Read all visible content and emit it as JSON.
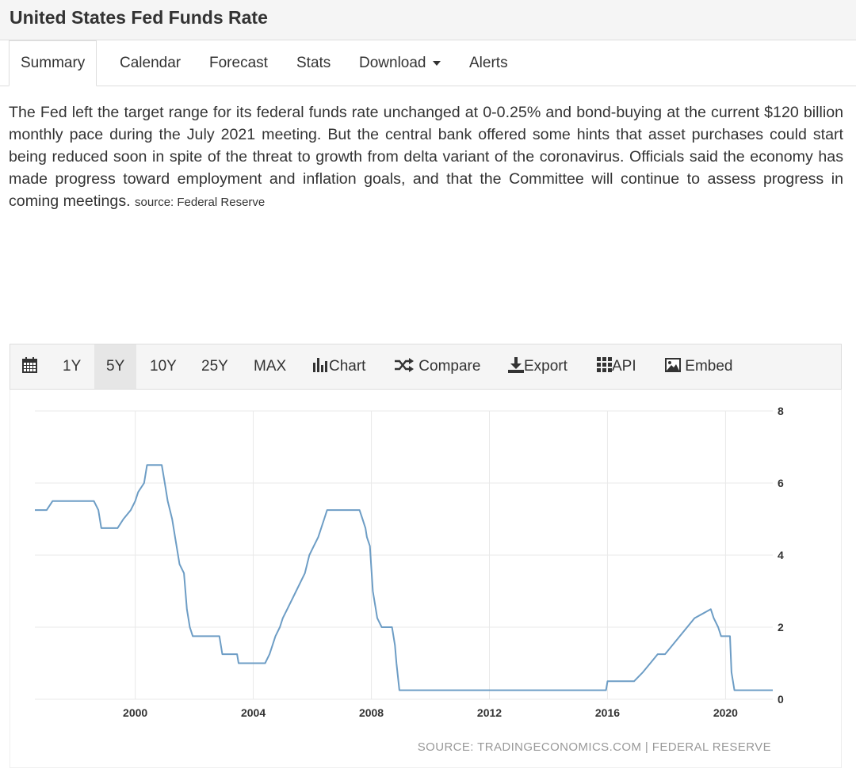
{
  "header": {
    "title": "United States Fed Funds Rate"
  },
  "tabs": [
    {
      "label": "Summary",
      "active": true
    },
    {
      "label": "Calendar"
    },
    {
      "label": "Forecast"
    },
    {
      "label": "Stats"
    },
    {
      "label": "Download",
      "dropdown": true
    },
    {
      "label": "Alerts"
    }
  ],
  "summary": {
    "text": "The Fed left the target range for its federal funds rate unchanged at 0-0.25% and bond-buying at the current $120 billion monthly pace during the July 2021 meeting. But the central bank offered some hints that asset purchases could start being reduced soon in spite of the threat to growth from delta variant of the coronavirus. Officials said the economy has made progress toward employment and inflation goals, and that the Committee will continue to assess progress in coming meetings.",
    "source": "source: Federal Reserve"
  },
  "toolbar": {
    "calendar_icon": "calendar-icon",
    "ranges": [
      "1Y",
      "5Y",
      "10Y",
      "25Y",
      "MAX"
    ],
    "active_range": "5Y",
    "chart_label": "Chart",
    "compare_label": "Compare",
    "export_label": "Export",
    "api_label": "API",
    "embed_label": "Embed"
  },
  "chart_data": {
    "type": "line",
    "series": [
      {
        "color": "#6d9dc5",
        "points": [
          [
            1996.6,
            5.25
          ],
          [
            1997.0,
            5.25
          ],
          [
            1997.2,
            5.5
          ],
          [
            1998.0,
            5.5
          ],
          [
            1998.6,
            5.5
          ],
          [
            1998.75,
            5.25
          ],
          [
            1998.85,
            4.75
          ],
          [
            1999.4,
            4.75
          ],
          [
            1999.6,
            5.0
          ],
          [
            1999.85,
            5.25
          ],
          [
            2000.0,
            5.5
          ],
          [
            2000.1,
            5.75
          ],
          [
            2000.3,
            6.0
          ],
          [
            2000.4,
            6.5
          ],
          [
            2000.9,
            6.5
          ],
          [
            2001.0,
            6.0
          ],
          [
            2001.1,
            5.5
          ],
          [
            2001.25,
            5.0
          ],
          [
            2001.35,
            4.5
          ],
          [
            2001.5,
            3.75
          ],
          [
            2001.65,
            3.5
          ],
          [
            2001.75,
            2.5
          ],
          [
            2001.85,
            2.0
          ],
          [
            2001.95,
            1.75
          ],
          [
            2002.85,
            1.75
          ],
          [
            2002.95,
            1.25
          ],
          [
            2003.45,
            1.25
          ],
          [
            2003.5,
            1.0
          ],
          [
            2004.4,
            1.0
          ],
          [
            2004.55,
            1.25
          ],
          [
            2004.65,
            1.5
          ],
          [
            2004.75,
            1.75
          ],
          [
            2004.9,
            2.0
          ],
          [
            2005.0,
            2.25
          ],
          [
            2005.15,
            2.5
          ],
          [
            2005.3,
            2.75
          ],
          [
            2005.45,
            3.0
          ],
          [
            2005.6,
            3.25
          ],
          [
            2005.75,
            3.5
          ],
          [
            2005.9,
            4.0
          ],
          [
            2006.05,
            4.25
          ],
          [
            2006.2,
            4.5
          ],
          [
            2006.4,
            5.0
          ],
          [
            2006.5,
            5.25
          ],
          [
            2007.6,
            5.25
          ],
          [
            2007.7,
            5.0
          ],
          [
            2007.8,
            4.75
          ],
          [
            2007.85,
            4.5
          ],
          [
            2007.95,
            4.25
          ],
          [
            2008.05,
            3.0
          ],
          [
            2008.2,
            2.25
          ],
          [
            2008.35,
            2.0
          ],
          [
            2008.7,
            2.0
          ],
          [
            2008.8,
            1.5
          ],
          [
            2008.85,
            1.0
          ],
          [
            2008.95,
            0.25
          ],
          [
            2015.95,
            0.25
          ],
          [
            2016.0,
            0.5
          ],
          [
            2016.9,
            0.5
          ],
          [
            2017.2,
            0.75
          ],
          [
            2017.45,
            1.0
          ],
          [
            2017.7,
            1.25
          ],
          [
            2017.95,
            1.25
          ],
          [
            2018.2,
            1.5
          ],
          [
            2018.45,
            1.75
          ],
          [
            2018.7,
            2.0
          ],
          [
            2018.95,
            2.25
          ],
          [
            2019.5,
            2.5
          ],
          [
            2019.6,
            2.25
          ],
          [
            2019.75,
            2.0
          ],
          [
            2019.85,
            1.75
          ],
          [
            2020.15,
            1.75
          ],
          [
            2020.2,
            0.75
          ],
          [
            2020.3,
            0.25
          ],
          [
            2021.6,
            0.25
          ]
        ]
      }
    ],
    "x_ticks": [
      "2000",
      "2004",
      "2008",
      "2012",
      "2016",
      "2020"
    ],
    "y_ticks": [
      "0",
      "2",
      "4",
      "6",
      "8"
    ],
    "xlim": [
      1996.6,
      2021.6
    ],
    "ylim": [
      0,
      8
    ],
    "grid": true,
    "y_axis_side": "right",
    "source": "SOURCE: TRADINGECONOMICS.COM | FEDERAL RESERVE"
  }
}
